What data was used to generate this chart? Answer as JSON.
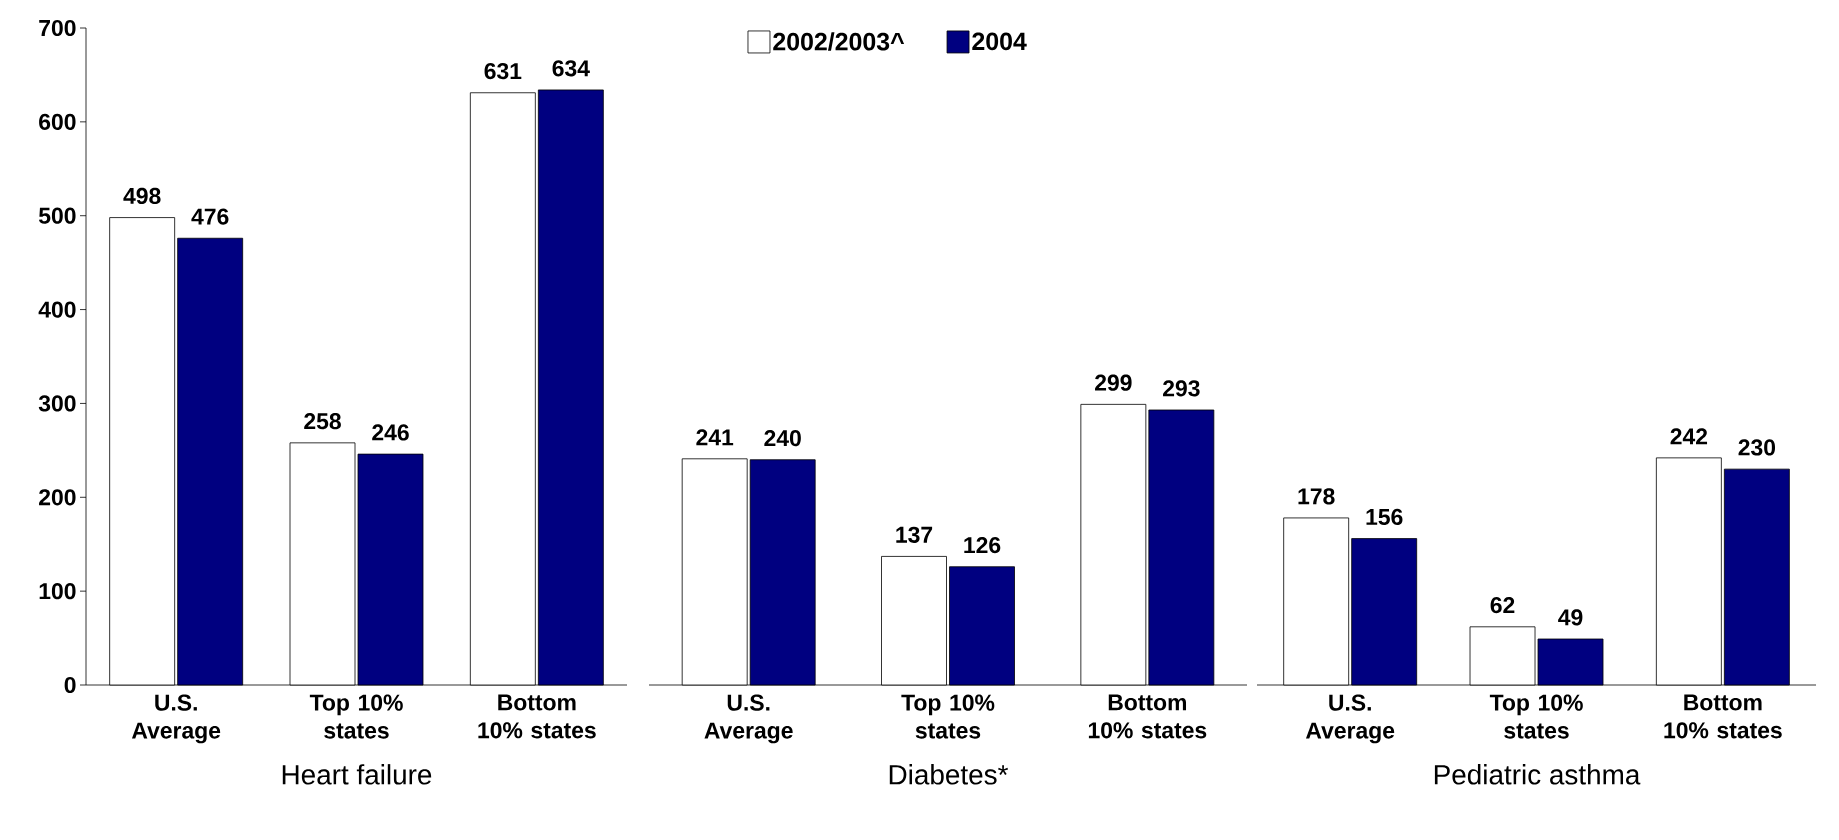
{
  "chart_data": [
    {
      "type": "bar",
      "xlabel": "Heart failure",
      "categories": [
        "U.S. Average",
        "Top 10% states",
        "Bottom 10% states"
      ],
      "series": [
        {
          "color": "#ffffff",
          "values": [
            498,
            258,
            631
          ]
        },
        {
          "color": "#000080",
          "values": [
            476,
            246,
            634
          ]
        }
      ],
      "ylim": [
        0,
        700
      ],
      "yticks": [
        0,
        100,
        200,
        300,
        400,
        500,
        600,
        700
      ],
      "data_labels": true
    },
    {
      "type": "bar",
      "xlabel": "Diabetes*",
      "categories": [
        "U.S. Average",
        "Top 10% states",
        "Bottom 10% states"
      ],
      "series": [
        {
          "name": "2002/2003^",
          "color": "#ffffff",
          "values": [
            241,
            137,
            299
          ]
        },
        {
          "name": "2004",
          "color": "#000080",
          "values": [
            240,
            126,
            293
          ]
        }
      ],
      "ylim": [
        0,
        700
      ],
      "tick_labels": "x",
      "legend": "top",
      "data_labels": true
    },
    {
      "type": "bar",
      "xlabel": "Pediatric asthma",
      "categories": [
        "U.S. Average",
        "Top 10% states",
        "Bottom 10% states"
      ],
      "series": [
        {
          "color": "#ffffff",
          "values": [
            178,
            62,
            242
          ]
        },
        {
          "color": "#000080",
          "values": [
            156,
            49,
            230
          ]
        }
      ],
      "ylim": [
        0,
        700
      ],
      "tick_labels": "x",
      "data_labels": true
    }
  ]
}
